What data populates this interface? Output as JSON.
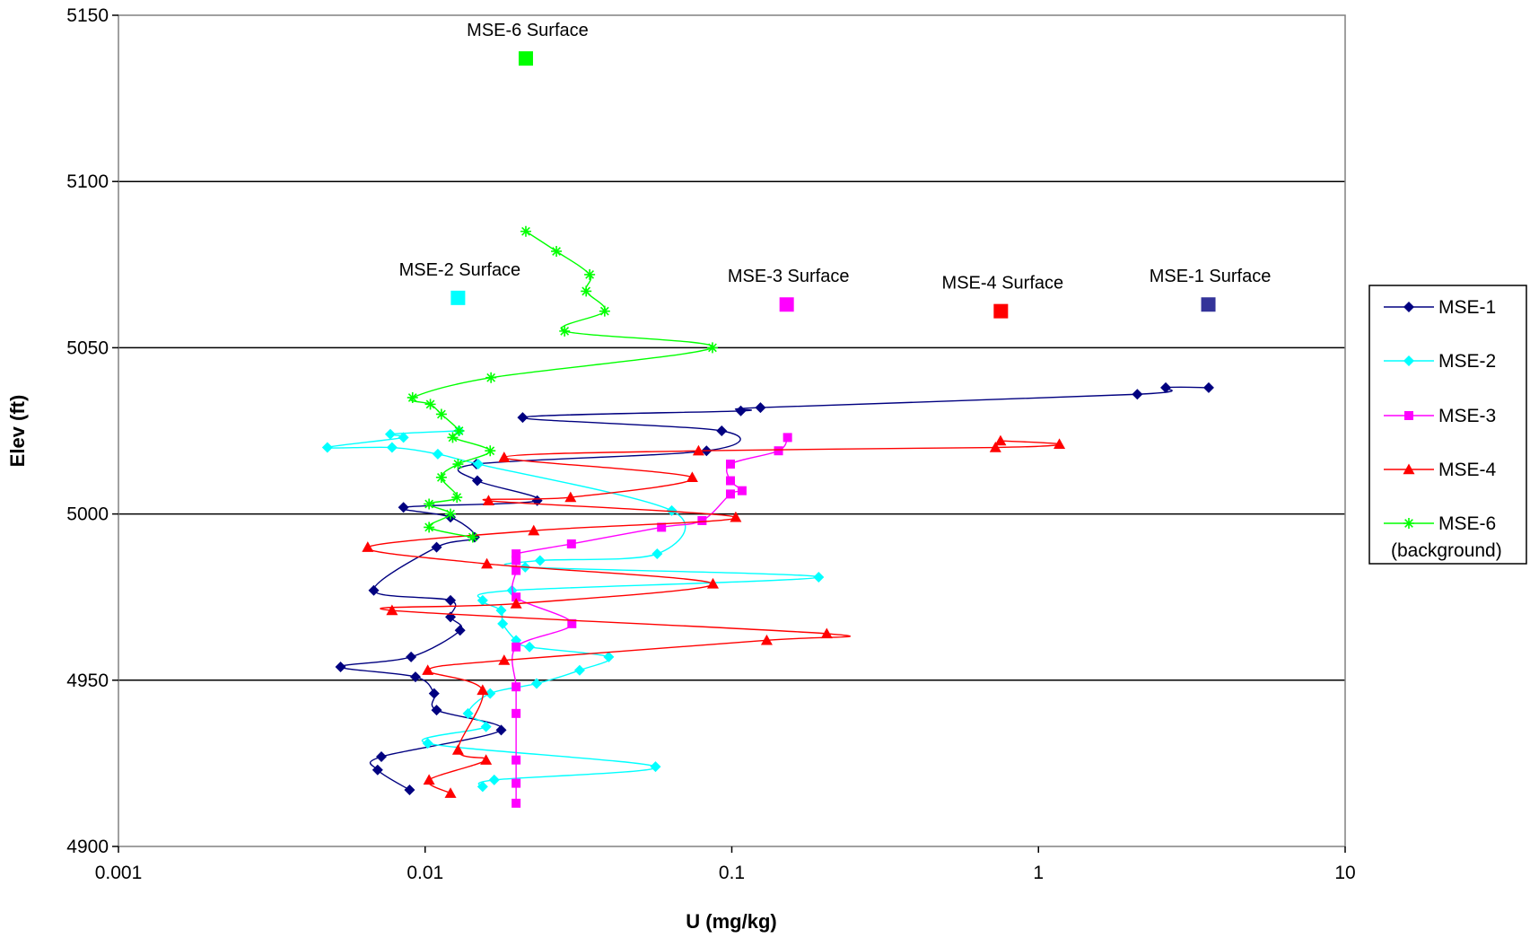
{
  "chart_data": {
    "type": "scatter",
    "title": "",
    "xlabel": "U (mg/kg)",
    "ylabel": "Elev (ft)",
    "x_scale": "log",
    "xlim": [
      0.001,
      10
    ],
    "ylim": [
      4900,
      5150
    ],
    "x_tick_labels": [
      "0.001",
      "0.01",
      "0.1",
      "1",
      "10"
    ],
    "y_tick_labels": [
      "4900",
      "4950",
      "5000",
      "5050",
      "5100",
      "5150"
    ],
    "grid": "horizontal major lines",
    "legend_position": "right",
    "series": [
      {
        "name": "MSE-1",
        "color": "#000080",
        "marker": "diamond",
        "points": [
          [
            3.59,
            5038
          ],
          [
            2.6,
            5038
          ],
          [
            2.1,
            5036
          ],
          [
            0.124,
            5032
          ],
          [
            0.107,
            5031
          ],
          [
            0.0208,
            5029
          ],
          [
            0.0927,
            5025
          ],
          [
            0.0827,
            5019
          ],
          [
            0.0147,
            5015
          ],
          [
            0.0148,
            5010
          ],
          [
            0.0232,
            5004
          ],
          [
            0.0085,
            5002
          ],
          [
            0.0121,
            4999
          ],
          [
            0.0145,
            4993
          ],
          [
            0.0109,
            4990
          ],
          [
            0.0068,
            4977
          ],
          [
            0.0121,
            4974
          ],
          [
            0.0121,
            4969
          ],
          [
            0.013,
            4965
          ],
          [
            0.009,
            4957
          ],
          [
            0.0053,
            4954
          ],
          [
            0.0093,
            4951
          ],
          [
            0.0107,
            4946
          ],
          [
            0.0109,
            4941
          ],
          [
            0.0177,
            4935
          ],
          [
            0.0072,
            4927
          ],
          [
            0.007,
            4923
          ],
          [
            0.0089,
            4917
          ]
        ]
      },
      {
        "name": "MSE-2",
        "color": "#00FFFF",
        "marker": "diamond",
        "points": [
          [
            0.0129,
            5025
          ],
          [
            0.0077,
            5024
          ],
          [
            0.0085,
            5023
          ],
          [
            0.0048,
            5020
          ],
          [
            0.0078,
            5020
          ],
          [
            0.011,
            5018
          ],
          [
            0.0149,
            5015
          ],
          [
            0.0637,
            5001
          ],
          [
            0.0571,
            4988
          ],
          [
            0.0237,
            4986
          ],
          [
            0.0212,
            4984
          ],
          [
            0.192,
            4981
          ],
          [
            0.0192,
            4977
          ],
          [
            0.0154,
            4974
          ],
          [
            0.0177,
            4971
          ],
          [
            0.0179,
            4967
          ],
          [
            0.0198,
            4962
          ],
          [
            0.0219,
            4960
          ],
          [
            0.0397,
            4957
          ],
          [
            0.0319,
            4953
          ],
          [
            0.0231,
            4949
          ],
          [
            0.0163,
            4946
          ],
          [
            0.0138,
            4940
          ],
          [
            0.0158,
            4936
          ],
          [
            0.0102,
            4931
          ],
          [
            0.0564,
            4924
          ],
          [
            0.0168,
            4920
          ],
          [
            0.0154,
            4918
          ]
        ]
      },
      {
        "name": "MSE-3",
        "color": "#FF00FF",
        "marker": "square",
        "points": [
          [
            0.152,
            5023
          ],
          [
            0.142,
            5019
          ],
          [
            0.099,
            5015
          ],
          [
            0.099,
            5010
          ],
          [
            0.108,
            5007
          ],
          [
            0.099,
            5006
          ],
          [
            0.08,
            4998
          ],
          [
            0.059,
            4996
          ],
          [
            0.03,
            4991
          ],
          [
            0.0198,
            4988
          ],
          [
            0.0198,
            4986
          ],
          [
            0.0198,
            4983
          ],
          [
            0.0198,
            4975
          ],
          [
            0.0301,
            4967
          ],
          [
            0.0198,
            4960
          ],
          [
            0.0198,
            4948
          ],
          [
            0.0198,
            4940
          ],
          [
            0.0198,
            4926
          ],
          [
            0.0198,
            4919
          ],
          [
            0.0198,
            4913
          ]
        ]
      },
      {
        "name": "MSE-4",
        "color": "#FF0000",
        "marker": "triangle",
        "points": [
          [
            0.752,
            5022
          ],
          [
            1.17,
            5021
          ],
          [
            0.724,
            5020
          ],
          [
            0.0779,
            5019
          ],
          [
            0.0181,
            5017
          ],
          [
            0.0743,
            5011
          ],
          [
            0.0298,
            5005
          ],
          [
            0.0161,
            5004
          ],
          [
            0.103,
            4999
          ],
          [
            0.0226,
            4995
          ],
          [
            0.0065,
            4990
          ],
          [
            0.0159,
            4985
          ],
          [
            0.0868,
            4979
          ],
          [
            0.0198,
            4973
          ],
          [
            0.0078,
            4971
          ],
          [
            0.204,
            4964
          ],
          [
            0.13,
            4962
          ],
          [
            0.0181,
            4956
          ],
          [
            0.0102,
            4953
          ],
          [
            0.0154,
            4947
          ],
          [
            0.0128,
            4929
          ],
          [
            0.0158,
            4926
          ],
          [
            0.0103,
            4920
          ],
          [
            0.0121,
            4916
          ]
        ]
      },
      {
        "name": "MSE-6\n(background)",
        "color": "#00FF00",
        "marker": "star",
        "points": [
          [
            0.0213,
            5085
          ],
          [
            0.0268,
            5079
          ],
          [
            0.0344,
            5072
          ],
          [
            0.0335,
            5067
          ],
          [
            0.0385,
            5061
          ],
          [
            0.0285,
            5055
          ],
          [
            0.0865,
            5050
          ],
          [
            0.0164,
            5041
          ],
          [
            0.0091,
            5035
          ],
          [
            0.0104,
            5033
          ],
          [
            0.0113,
            5030
          ],
          [
            0.0129,
            5025
          ],
          [
            0.0123,
            5023
          ],
          [
            0.0163,
            5019
          ],
          [
            0.0128,
            5015
          ],
          [
            0.0113,
            5011
          ],
          [
            0.0127,
            5005
          ],
          [
            0.0103,
            5003
          ],
          [
            0.0121,
            5000
          ],
          [
            0.0103,
            4996
          ],
          [
            0.0143,
            4993
          ]
        ]
      }
    ],
    "surface_points": [
      {
        "label": "MSE-6 Surface",
        "x": 0.0213,
        "y": 5137,
        "color": "#00FF00"
      },
      {
        "label": "MSE-2 Surface",
        "x": 0.0128,
        "y": 5065,
        "color": "#00FFFF"
      },
      {
        "label": "MSE-3 Surface",
        "x": 0.151,
        "y": 5063,
        "color": "#FF00FF"
      },
      {
        "label": "MSE-4 Surface",
        "x": 0.754,
        "y": 5061,
        "color": "#FF0000"
      },
      {
        "label": "MSE-1 Surface",
        "x": 3.58,
        "y": 5063,
        "color": "#333399"
      }
    ]
  }
}
